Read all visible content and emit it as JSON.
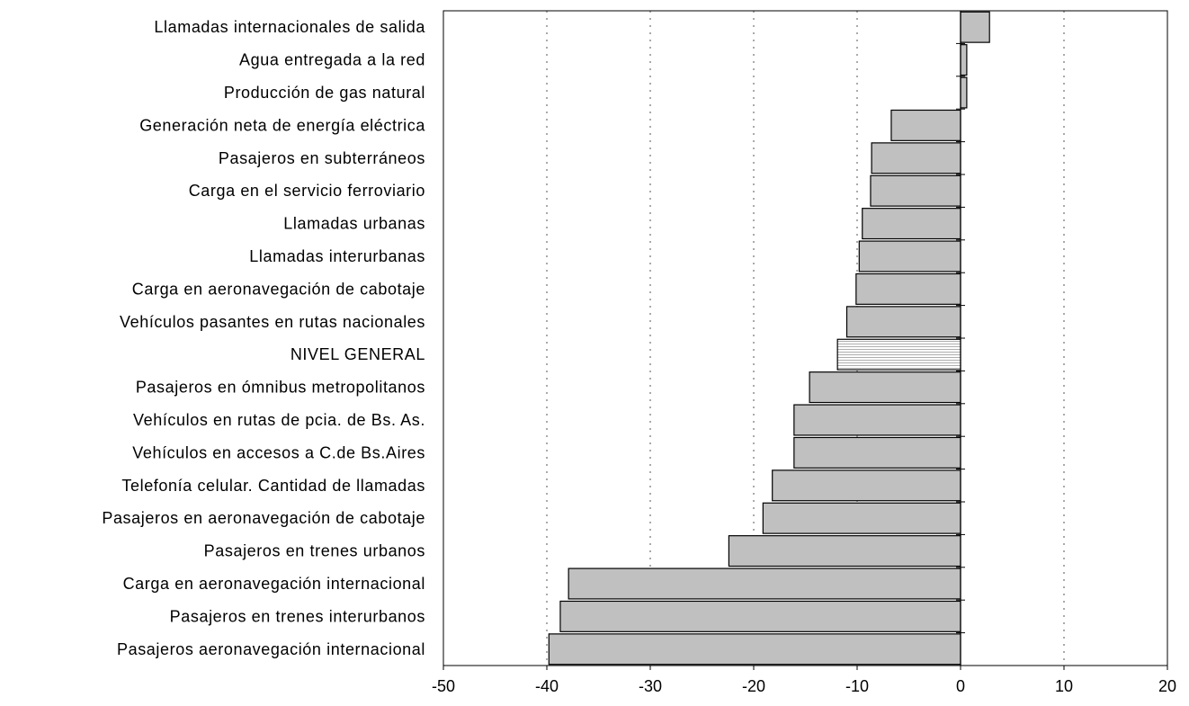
{
  "chart_data": {
    "type": "bar",
    "orientation": "horizontal",
    "categories": [
      "Llamadas internacionales de salida",
      "Agua entregada a la red",
      "Producción de gas natural",
      "Generación neta de energía eléctrica",
      "Pasajeros en subterráneos",
      "Carga en el servicio ferroviario",
      "Llamadas urbanas",
      "Llamadas interurbanas",
      "Carga en aeronavegación de cabotaje",
      "Vehículos pasantes en rutas nacionales",
      "NIVEL GENERAL",
      "Pasajeros en ómnibus metropolitanos",
      "Vehículos en rutas de pcia. de Bs. As.",
      "Vehículos en accesos a C.de Bs.Aires",
      "Telefonía celular. Cantidad de llamadas",
      "Pasajeros en aeronavegación de cabotaje",
      "Pasajeros en trenes urbanos",
      "Carga en aeronavegación internacional",
      "Pasajeros en trenes interurbanos",
      "Pasajeros aeronavegación internacional"
    ],
    "values": [
      2.8,
      0.6,
      0.6,
      -6.7,
      -8.6,
      -8.7,
      -9.5,
      -9.8,
      -10.1,
      -11.0,
      -11.9,
      -14.6,
      -16.1,
      -16.1,
      -18.2,
      -19.1,
      -22.4,
      -37.9,
      -38.7,
      -39.8
    ],
    "highlight_category": "NIVEL GENERAL",
    "xlim": [
      -50,
      20
    ],
    "xticks": [
      -50,
      -40,
      -30,
      -20,
      -10,
      0,
      10,
      20
    ],
    "grid": "vertical dotted",
    "colors": {
      "bar": "#c0c0c0",
      "highlight": "#f2f2f2",
      "stroke": "#000000",
      "grid": "#555555"
    }
  }
}
